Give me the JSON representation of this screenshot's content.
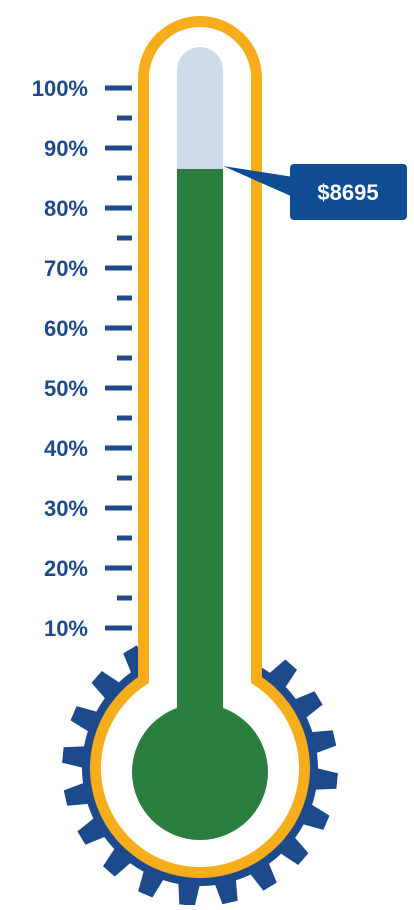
{
  "thermometer": {
    "amount_label": "$8695",
    "progress_percent": 86.5,
    "scale": {
      "labels": [
        "100%",
        "90%",
        "80%",
        "70%",
        "60%",
        "50%",
        "40%",
        "30%",
        "20%",
        "10%"
      ]
    },
    "colors": {
      "fill": "#2a7f3e",
      "empty": "#cfdbeb",
      "outline": "#f5ad1b",
      "gear": "#1d4a8c",
      "scale": "#1d4a8c",
      "callout": "#0f4c93"
    },
    "icons": {
      "gear": "gear-icon"
    }
  }
}
